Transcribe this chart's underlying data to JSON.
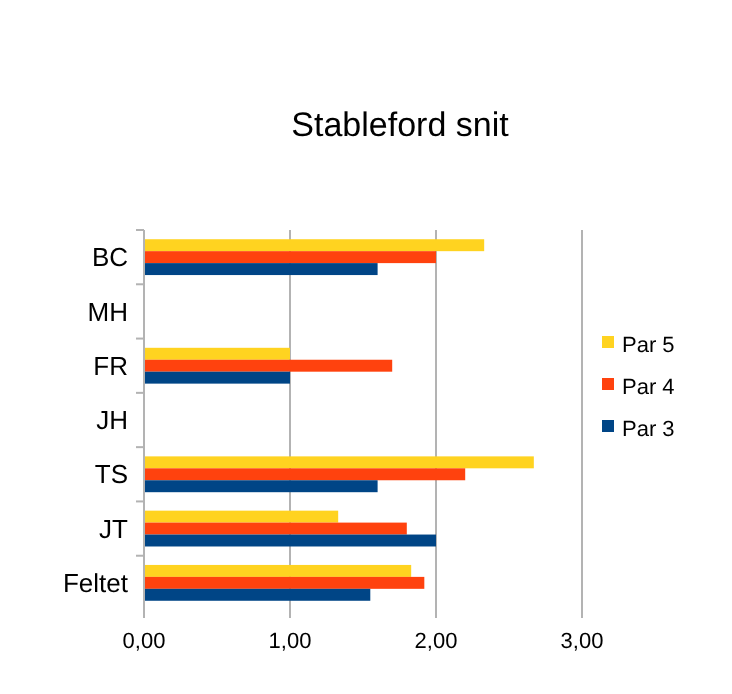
{
  "chart_data": {
    "type": "bar",
    "orientation": "horizontal",
    "title": "Stableford snit",
    "categories": [
      "BC",
      "MH",
      "FR",
      "JH",
      "TS",
      "JT",
      "Feltet"
    ],
    "series": [
      {
        "name": "Par 5",
        "color": "#ffd320",
        "values": [
          2.33,
          null,
          1.0,
          null,
          2.67,
          1.33,
          1.83
        ]
      },
      {
        "name": "Par 4",
        "color": "#ff420e",
        "values": [
          2.0,
          null,
          1.7,
          null,
          2.2,
          1.8,
          1.92
        ]
      },
      {
        "name": "Par 3",
        "color": "#004586",
        "values": [
          1.6,
          null,
          1.0,
          null,
          1.6,
          2.0,
          1.55
        ]
      }
    ],
    "xlim": [
      0,
      3
    ],
    "xticks": [
      {
        "value": 0,
        "label": "0,00"
      },
      {
        "value": 1,
        "label": "1,00"
      },
      {
        "value": 2,
        "label": "2,00"
      },
      {
        "value": 3,
        "label": "3,00"
      }
    ],
    "grid": "x",
    "legend": "right"
  }
}
